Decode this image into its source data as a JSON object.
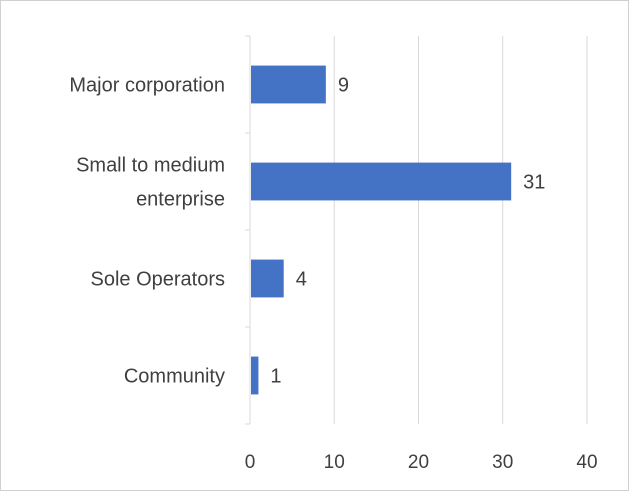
{
  "chart_data": {
    "type": "bar",
    "orientation": "horizontal",
    "title": "",
    "xlabel": "",
    "ylabel": "",
    "categories": [
      [
        "Major corporation"
      ],
      [
        "Small to medium",
        "enterprise"
      ],
      [
        "Sole Operators"
      ],
      [
        "Community"
      ]
    ],
    "values": [
      9,
      31,
      4,
      1
    ],
    "xlim": [
      0,
      40
    ],
    "xticks": [
      0,
      10,
      20,
      30,
      40
    ],
    "grid": "vertical",
    "legend": "none",
    "bar_color": "#4472C4",
    "grid_color": "#d9d9d9",
    "text_color": "#404040"
  }
}
